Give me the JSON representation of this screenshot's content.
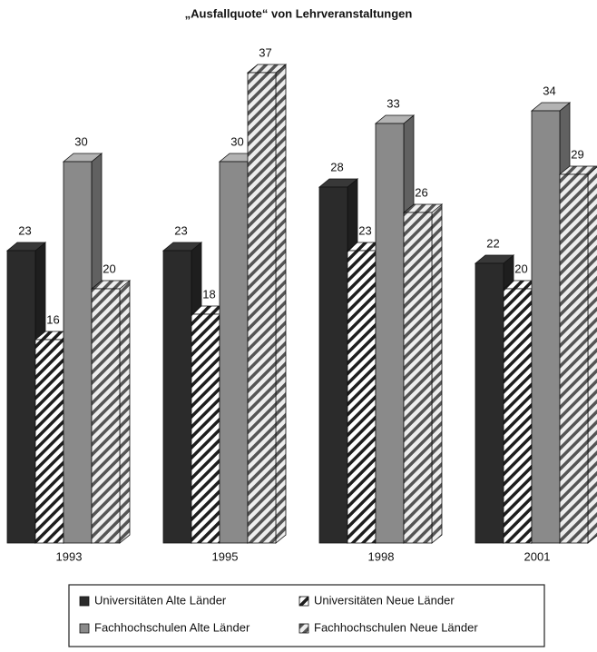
{
  "chart_data": {
    "type": "bar3d",
    "title": "„Ausfallquote“ von Lehrveranstaltungen",
    "categories": [
      "1993",
      "1995",
      "1998",
      "2001"
    ],
    "series": [
      {
        "name": "Universitäten Alte Länder",
        "color": "#2b2b2b",
        "pattern": "solid",
        "values": [
          23,
          23,
          28,
          22
        ]
      },
      {
        "name": "Universitäten Neue Länder",
        "color": "#1e1e1e",
        "pattern": "hatch",
        "values": [
          16,
          18,
          23,
          20
        ]
      },
      {
        "name": "Fachhochschulen Alte Länder",
        "color": "#8a8a8a",
        "pattern": "solid",
        "values": [
          30,
          30,
          33,
          34
        ]
      },
      {
        "name": "Fachhochschulen Neue Länder",
        "color": "#555555",
        "pattern": "hatch",
        "values": [
          20,
          37,
          26,
          29
        ]
      }
    ],
    "legend": "bottom"
  }
}
